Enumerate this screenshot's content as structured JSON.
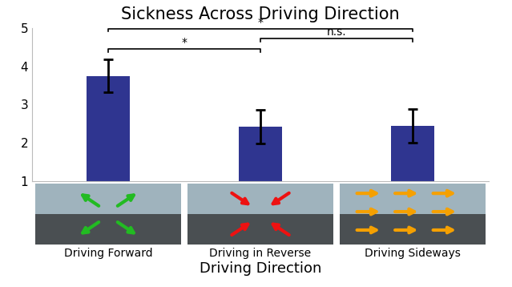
{
  "chart_data": {
    "type": "bar",
    "title": "Sickness Across Driving Direction",
    "x_label": "Driving Direction",
    "categories": [
      "Driving Forward",
      "Driving in Reverse",
      "Driving Sideways"
    ],
    "values": [
      3.75,
      2.43,
      2.45
    ],
    "errors": [
      0.43,
      0.44,
      0.44
    ],
    "color": "#2f3590",
    "ylim": [
      1,
      5
    ],
    "yticks": [
      1,
      2,
      3,
      4,
      5
    ],
    "grid": false,
    "annotations": [
      {
        "between": [
          "Driving Forward",
          "Driving in Reverse"
        ],
        "label": "*"
      },
      {
        "between": [
          "Driving in Reverse",
          "Driving Sideways"
        ],
        "label": "n.s."
      },
      {
        "between": [
          "Driving Forward",
          "Driving Sideways"
        ],
        "label": "*"
      }
    ]
  }
}
